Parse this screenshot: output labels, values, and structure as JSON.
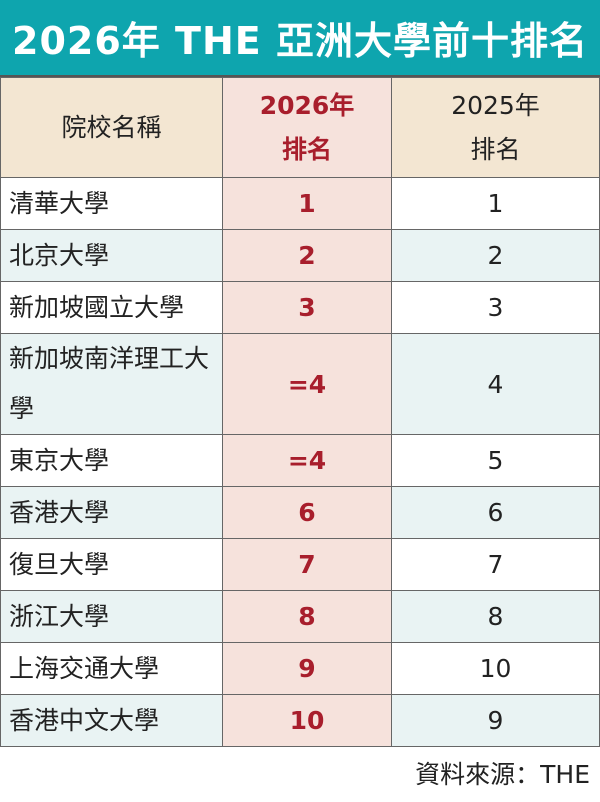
{
  "title": "2026年 THE 亞洲大學前十排名",
  "headers": {
    "name": "院校名稱",
    "rank2026": "2026年\n排名",
    "rank2026_line1": "2026年",
    "rank2026_line2": "排名",
    "rank2025_line1": "2025年",
    "rank2025_line2": "排名"
  },
  "rows": [
    {
      "name": "清華大學",
      "r2026": "1",
      "r2025": "1"
    },
    {
      "name": "北京大學",
      "r2026": "2",
      "r2025": "2"
    },
    {
      "name": "新加坡國立大學",
      "r2026": "3",
      "r2025": "3"
    },
    {
      "name": "新加坡南洋理工大學",
      "r2026": "=4",
      "r2025": "4"
    },
    {
      "name": "東京大學",
      "r2026": "=4",
      "r2025": "5"
    },
    {
      "name": "香港大學",
      "r2026": "6",
      "r2025": "6"
    },
    {
      "name": "復旦大學",
      "r2026": "7",
      "r2025": "7"
    },
    {
      "name": "浙江大學",
      "r2026": "8",
      "r2025": "8"
    },
    {
      "name": "上海交通大學",
      "r2026": "9",
      "r2025": "10"
    },
    {
      "name": "香港中文大學",
      "r2026": "10",
      "r2025": "9"
    }
  ],
  "source": "資料來源：THE",
  "colors": {
    "title_bg": "#0ea5ae",
    "header_bg": "#f3e6d2",
    "rank2026_col": "#f6e2dc",
    "rank2026_text": "#a81e2c",
    "alt_row": "#e9f3f3"
  }
}
